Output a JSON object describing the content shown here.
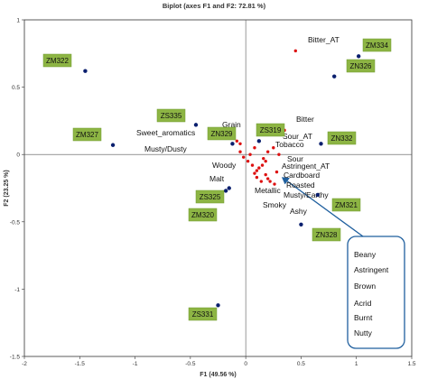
{
  "chart_data": {
    "type": "scatter",
    "title": "Biplot (axes F1 and F2: 72.81 %)",
    "xlabel": "F1 (49.56 %)",
    "ylabel": "F2 (23.25 %)",
    "xlim": [
      -2,
      1.5
    ],
    "ylim": [
      -1.5,
      1
    ],
    "xticks": [
      "-2",
      "-1.5",
      "-1",
      "-0.5",
      "0",
      "0.5",
      "1",
      "1.5"
    ],
    "yticks": [
      "-1.5",
      "-1",
      "-0.5",
      "0",
      "0.5",
      "1"
    ],
    "grid": false,
    "samples_color": "#0a1f6e",
    "variables_color": "#dd1111",
    "label_box_color": "#8db544",
    "samples": [
      {
        "label": "ZM322",
        "x": -1.45,
        "y": 0.62
      },
      {
        "label": "ZM327",
        "x": -1.2,
        "y": 0.07
      },
      {
        "label": "ZS335",
        "x": -0.45,
        "y": 0.22
      },
      {
        "label": "ZN329",
        "x": -0.12,
        "y": 0.08
      },
      {
        "label": "ZS319",
        "x": 0.12,
        "y": 0.1
      },
      {
        "label": "ZN332",
        "x": 0.68,
        "y": 0.08
      },
      {
        "label": "ZM334",
        "x": 1.02,
        "y": 0.73
      },
      {
        "label": "ZN326",
        "x": 0.8,
        "y": 0.58
      },
      {
        "label": "ZS325",
        "x": -0.15,
        "y": -0.25
      },
      {
        "label": "ZM320",
        "x": -0.18,
        "y": -0.27
      },
      {
        "label": "ZM321",
        "x": 0.65,
        "y": -0.3
      },
      {
        "label": "ZN328",
        "x": 0.5,
        "y": -0.52
      },
      {
        "label": "ZS331",
        "x": -0.25,
        "y": -1.12
      }
    ],
    "variables": [
      {
        "label": "Bitter_AT",
        "x": 0.45,
        "y": 0.77
      },
      {
        "label": "Bitter",
        "x": 0.35,
        "y": 0.18
      },
      {
        "label": "Grain",
        "x": -0.08,
        "y": 0.1
      },
      {
        "label": "Sweet_aromatics",
        "x": -0.05,
        "y": 0.08
      },
      {
        "label": "Sour_AT",
        "x": 0.25,
        "y": 0.05
      },
      {
        "label": "Tobacco",
        "x": 0.2,
        "y": 0.02
      },
      {
        "label": "Musty/Dusty",
        "x": -0.05,
        "y": 0.02
      },
      {
        "label": "Woody",
        "x": -0.02,
        "y": -0.02
      },
      {
        "label": "Sour",
        "x": 0.18,
        "y": -0.05
      },
      {
        "label": "Astringent_AT",
        "x": 0.15,
        "y": -0.08
      },
      {
        "label": "Cardboard",
        "x": 0.12,
        "y": -0.1
      },
      {
        "label": "Malt",
        "x": 0.02,
        "y": -0.05
      },
      {
        "label": "Roasted",
        "x": 0.1,
        "y": -0.12
      },
      {
        "label": "Metallic",
        "x": 0.08,
        "y": -0.14
      },
      {
        "label": "Musty/Earthy",
        "x": 0.18,
        "y": -0.15
      },
      {
        "label": "Smoky",
        "x": 0.1,
        "y": -0.17
      },
      {
        "label": "Ashy",
        "x": 0.22,
        "y": -0.2
      },
      {
        "label": "",
        "x": 0.2,
        "y": -0.18
      },
      {
        "label": "",
        "x": 0.14,
        "y": -0.2
      },
      {
        "label": "",
        "x": 0.28,
        "y": -0.13
      },
      {
        "label": "",
        "x": 0.06,
        "y": -0.08
      },
      {
        "label": "",
        "x": 0.04,
        "y": 0.0
      },
      {
        "label": "",
        "x": 0.3,
        "y": 0.0
      },
      {
        "label": "",
        "x": 0.26,
        "y": -0.22
      },
      {
        "label": "",
        "x": 0.16,
        "y": -0.03
      },
      {
        "label": "",
        "x": 0.08,
        "y": 0.05
      }
    ],
    "callout": {
      "items": [
        "Beany",
        "Astringent",
        "Brown",
        "Acrid",
        "Burnt",
        "Nutty"
      ],
      "color": "#1f5f9e"
    }
  }
}
